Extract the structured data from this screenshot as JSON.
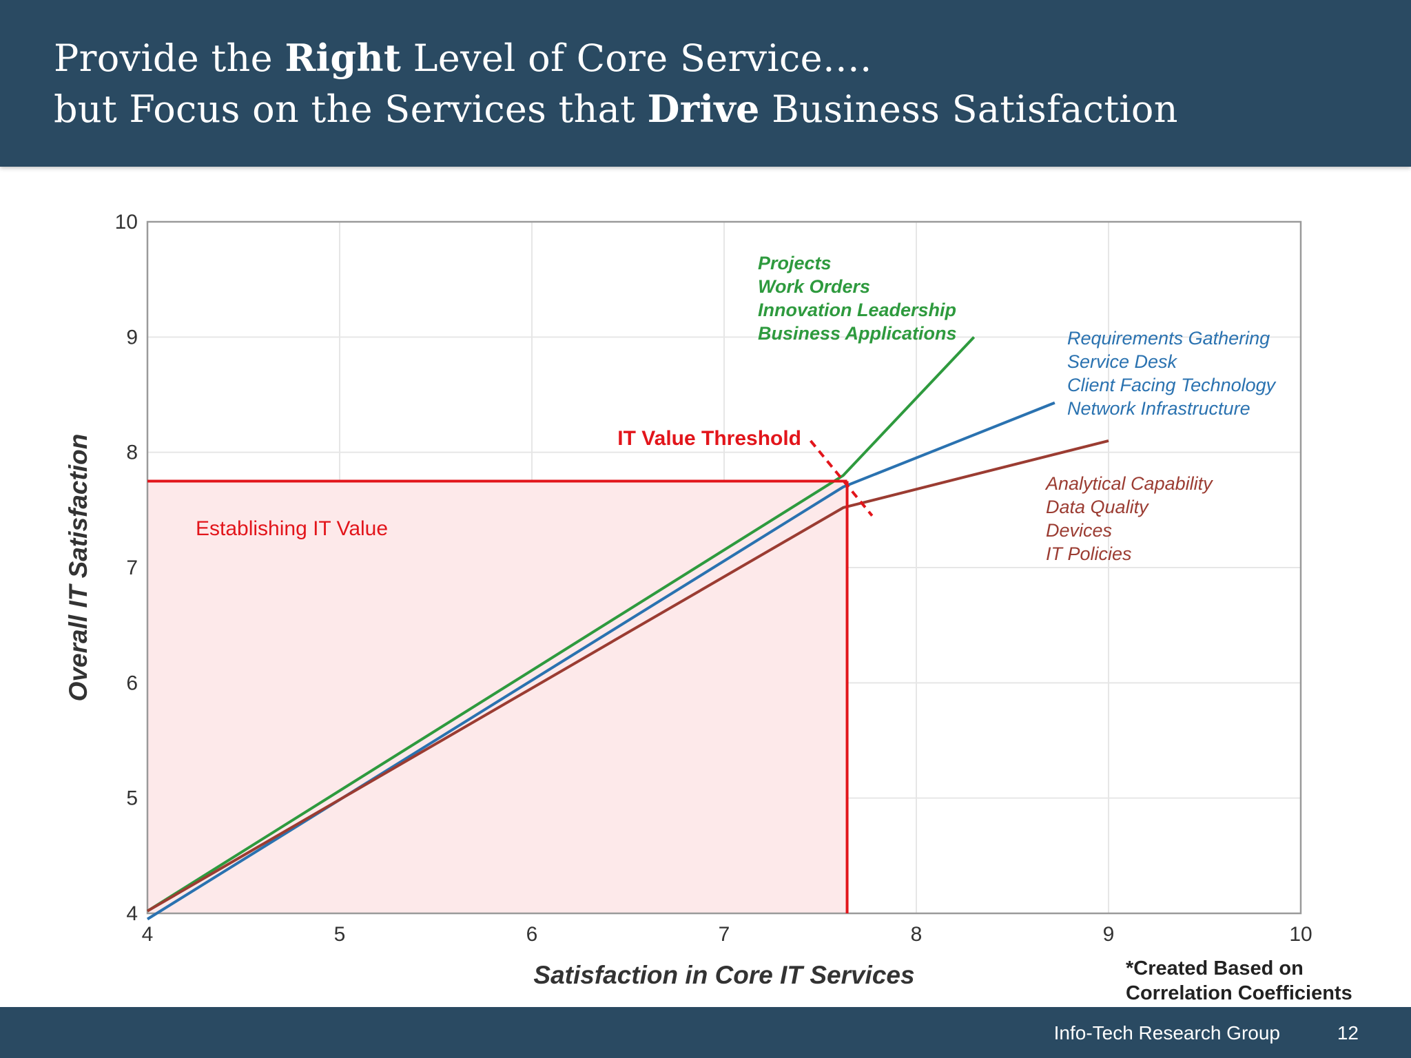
{
  "header": {
    "line1": {
      "pre": "Provide the ",
      "bold": "Right",
      "post": " Level of Core Service…."
    },
    "line2": {
      "pre": "but Focus on the Services that ",
      "bold": "Drive",
      "post": " Business Satisfaction"
    }
  },
  "footer": {
    "org": "Info-Tech Research Group",
    "page": "12"
  },
  "note": {
    "line1": "*Created Based on",
    "line2": "Correlation Coefficients"
  },
  "colors": {
    "header_bg": "#2a4a62",
    "green": "#2e9a3e",
    "blue": "#2a72b0",
    "brown": "#9b3c32",
    "red": "#e2151b",
    "shade": "#fde9ea"
  },
  "chart_data": {
    "type": "line",
    "xlabel": "Satisfaction in Core IT Services",
    "ylabel": "Overall IT Satisfaction",
    "xlim": [
      4,
      10
    ],
    "ylim": [
      4,
      10
    ],
    "xticks": [
      4,
      5,
      6,
      7,
      8,
      9,
      10
    ],
    "yticks": [
      4,
      5,
      6,
      7,
      8,
      9,
      10
    ],
    "grid": true,
    "series": [
      {
        "key": "green",
        "x": [
          4,
          7.62,
          8.3
        ],
        "y": [
          4.02,
          7.8,
          9.0
        ],
        "labels": [
          "Projects",
          "Work Orders",
          "Innovation Leadership",
          "Business Applications"
        ]
      },
      {
        "key": "blue",
        "x": [
          4,
          7.62,
          8.72
        ],
        "y": [
          3.95,
          7.7,
          8.43
        ],
        "labels": [
          "Requirements Gathering",
          "Service Desk",
          "Client Facing Technology",
          "Network Infrastructure"
        ]
      },
      {
        "key": "brown",
        "x": [
          4,
          7.62,
          9.0
        ],
        "y": [
          4.02,
          7.52,
          8.1
        ],
        "labels": [
          "Analytical Capability",
          "Data Quality",
          "Devices",
          "IT Policies"
        ]
      }
    ],
    "threshold": {
      "label": "IT Value Threshold",
      "x": 7.64,
      "y": 7.75,
      "dash_from": [
        7.45,
        8.1
      ],
      "dash_to": [
        7.77,
        7.45
      ]
    },
    "region": {
      "label": "Establishing IT Value",
      "x": [
        4,
        7.64
      ],
      "y": [
        4,
        7.75
      ]
    }
  }
}
